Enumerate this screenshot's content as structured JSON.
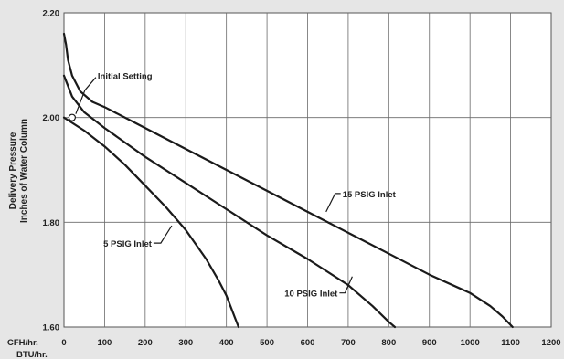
{
  "chart_data": {
    "type": "line",
    "ylabel": [
      "Delivery Pressure",
      "Inches of Water Column"
    ],
    "xlabel_rows": [
      "CFH/hr.",
      "BTU/hr."
    ],
    "xlim": [
      0,
      1200
    ],
    "ylim": [
      1.6,
      2.2
    ],
    "x_ticks": [
      0,
      100,
      200,
      300,
      400,
      500,
      600,
      700,
      800,
      900,
      1000,
      1100,
      1200
    ],
    "y_ticks": [
      1.6,
      1.8,
      2.0,
      2.2
    ],
    "y_tick_labels": [
      "1.60",
      "1.80",
      "2.00",
      "2.20"
    ],
    "grid": true,
    "series": [
      {
        "name": "5 PSIG Inlet",
        "x": [
          0,
          50,
          100,
          150,
          200,
          250,
          300,
          350,
          380,
          400,
          420,
          430
        ],
        "y": [
          2.0,
          1.975,
          1.945,
          1.91,
          1.87,
          1.83,
          1.785,
          1.73,
          1.69,
          1.66,
          1.62,
          1.6
        ]
      },
      {
        "name": "10 PSIG Inlet",
        "x": [
          0,
          20,
          50,
          100,
          200,
          300,
          400,
          500,
          600,
          700,
          760,
          800,
          815
        ],
        "y": [
          2.08,
          2.04,
          2.01,
          1.98,
          1.925,
          1.875,
          1.825,
          1.775,
          1.73,
          1.68,
          1.64,
          1.61,
          1.6
        ]
      },
      {
        "name": "15 PSIG Inlet",
        "x": [
          0,
          5,
          10,
          20,
          40,
          70,
          100,
          200,
          300,
          400,
          500,
          600,
          700,
          800,
          900,
          1000,
          1050,
          1080,
          1105
        ],
        "y": [
          2.16,
          2.14,
          2.11,
          2.08,
          2.05,
          2.03,
          2.02,
          1.98,
          1.94,
          1.9,
          1.86,
          1.82,
          1.78,
          1.74,
          1.7,
          1.665,
          1.64,
          1.62,
          1.6
        ]
      }
    ],
    "annotations": [
      {
        "text": "Initial Setting",
        "x": 20,
        "y": 2.0
      },
      {
        "text": "15 PSIG Inlet",
        "series": 2,
        "x": 650,
        "y": 1.82
      },
      {
        "text": "10 PSIG Inlet",
        "series": 1,
        "x": 710,
        "y": 1.7
      },
      {
        "text": "5 PSIG Inlet",
        "series": 0,
        "x": 270,
        "y": 1.79
      }
    ]
  }
}
